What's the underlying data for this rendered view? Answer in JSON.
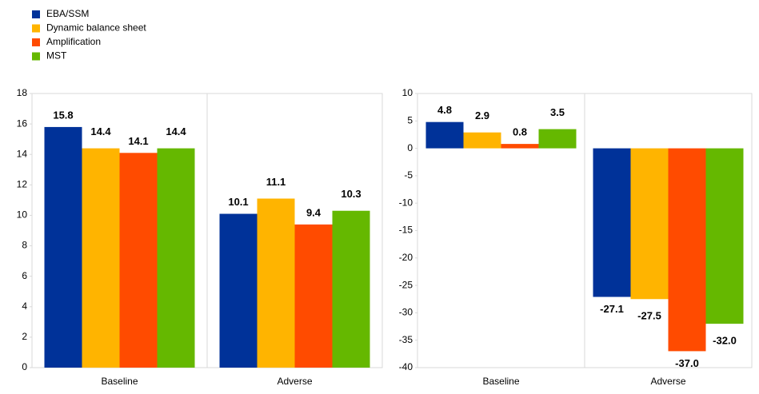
{
  "chart_data": [
    {
      "type": "bar",
      "categories": [
        "Baseline",
        "Adverse"
      ],
      "series": [
        {
          "name": "EBA/SSM",
          "color": "#003299",
          "values": [
            15.8,
            10.1
          ]
        },
        {
          "name": "Dynamic balance sheet",
          "color": "#ffb400",
          "values": [
            14.4,
            11.1
          ]
        },
        {
          "name": "Amplification",
          "color": "#ff4b00",
          "values": [
            14.1,
            9.4
          ]
        },
        {
          "name": "MST",
          "color": "#65b800",
          "values": [
            14.4,
            10.3
          ]
        }
      ],
      "ylim": [
        0,
        18
      ],
      "yticks": [
        0,
        2,
        4,
        6,
        8,
        10,
        12,
        14,
        16,
        18
      ]
    },
    {
      "type": "bar",
      "categories": [
        "Baseline",
        "Adverse"
      ],
      "series": [
        {
          "color": "#003299",
          "values": [
            4.8,
            -27.1
          ]
        },
        {
          "color": "#ffb400",
          "values": [
            2.9,
            -27.5
          ]
        },
        {
          "color": "#ff4b00",
          "values": [
            0.8,
            -37
          ],
          "value_labels": [
            "0.8",
            "-37.0"
          ]
        },
        {
          "color": "#65b800",
          "values": [
            3.5,
            -32
          ],
          "value_labels": [
            "3.5",
            "-32.0"
          ]
        }
      ],
      "ylim": [
        -40,
        10
      ],
      "yticks": [
        -40,
        -35,
        -30,
        -25,
        -20,
        -15,
        -10,
        -5,
        0,
        5,
        10
      ]
    }
  ]
}
